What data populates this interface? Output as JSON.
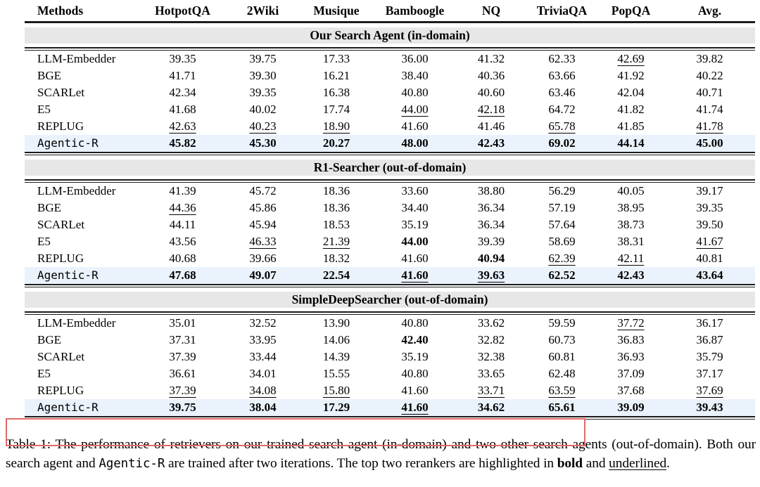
{
  "table": {
    "columns": [
      "Methods",
      "HotpotQA",
      "2Wiki",
      "Musique",
      "Bamboogle",
      "NQ",
      "TriviaQA",
      "PopQA",
      "Avg."
    ],
    "sections": [
      {
        "title": "Our Search Agent (in-domain)",
        "rows": [
          {
            "method": "LLM-Embedder",
            "mono": false,
            "highlight": false,
            "cells": [
              [
                "39.35",
                ""
              ],
              [
                "39.75",
                ""
              ],
              [
                "17.33",
                ""
              ],
              [
                "36.00",
                ""
              ],
              [
                "41.32",
                ""
              ],
              [
                "62.33",
                ""
              ],
              [
                "42.69",
                "u"
              ],
              [
                "39.82",
                ""
              ]
            ]
          },
          {
            "method": "BGE",
            "mono": false,
            "highlight": false,
            "cells": [
              [
                "41.71",
                ""
              ],
              [
                "39.30",
                ""
              ],
              [
                "16.21",
                ""
              ],
              [
                "38.40",
                ""
              ],
              [
                "40.36",
                ""
              ],
              [
                "63.66",
                ""
              ],
              [
                "41.92",
                ""
              ],
              [
                "40.22",
                ""
              ]
            ]
          },
          {
            "method": "SCARLet",
            "mono": false,
            "highlight": false,
            "cells": [
              [
                "42.34",
                ""
              ],
              [
                "39.35",
                ""
              ],
              [
                "16.38",
                ""
              ],
              [
                "40.80",
                ""
              ],
              [
                "40.60",
                ""
              ],
              [
                "63.46",
                ""
              ],
              [
                "42.04",
                ""
              ],
              [
                "40.71",
                ""
              ]
            ]
          },
          {
            "method": "E5",
            "mono": false,
            "highlight": false,
            "cells": [
              [
                "41.68",
                ""
              ],
              [
                "40.02",
                ""
              ],
              [
                "17.74",
                ""
              ],
              [
                "44.00",
                "u"
              ],
              [
                "42.18",
                "u"
              ],
              [
                "64.72",
                ""
              ],
              [
                "41.82",
                ""
              ],
              [
                "41.74",
                ""
              ]
            ]
          },
          {
            "method": "REPLUG",
            "mono": false,
            "highlight": false,
            "cells": [
              [
                "42.63",
                "u"
              ],
              [
                "40.23",
                "u"
              ],
              [
                "18.90",
                "u"
              ],
              [
                "41.60",
                ""
              ],
              [
                "41.46",
                ""
              ],
              [
                "65.78",
                "u"
              ],
              [
                "41.85",
                ""
              ],
              [
                "41.78",
                "u"
              ]
            ]
          },
          {
            "method": "Agentic-R",
            "mono": true,
            "highlight": true,
            "cells": [
              [
                "45.82",
                "b"
              ],
              [
                "45.30",
                "b"
              ],
              [
                "20.27",
                "b"
              ],
              [
                "48.00",
                "b"
              ],
              [
                "42.43",
                "b"
              ],
              [
                "69.02",
                "b"
              ],
              [
                "44.14",
                "b"
              ],
              [
                "45.00",
                "b"
              ]
            ]
          }
        ]
      },
      {
        "title": "R1-Searcher (out-of-domain)",
        "rows": [
          {
            "method": "LLM-Embedder",
            "mono": false,
            "highlight": false,
            "cells": [
              [
                "41.39",
                ""
              ],
              [
                "45.72",
                ""
              ],
              [
                "18.36",
                ""
              ],
              [
                "33.60",
                ""
              ],
              [
                "38.80",
                ""
              ],
              [
                "56.29",
                ""
              ],
              [
                "40.05",
                ""
              ],
              [
                "39.17",
                ""
              ]
            ]
          },
          {
            "method": "BGE",
            "mono": false,
            "highlight": false,
            "cells": [
              [
                "44.36",
                "u"
              ],
              [
                "45.86",
                ""
              ],
              [
                "18.36",
                ""
              ],
              [
                "34.40",
                ""
              ],
              [
                "36.34",
                ""
              ],
              [
                "57.19",
                ""
              ],
              [
                "38.95",
                ""
              ],
              [
                "39.35",
                ""
              ]
            ]
          },
          {
            "method": "SCARLet",
            "mono": false,
            "highlight": false,
            "cells": [
              [
                "44.11",
                ""
              ],
              [
                "45.94",
                ""
              ],
              [
                "18.53",
                ""
              ],
              [
                "35.19",
                ""
              ],
              [
                "36.34",
                ""
              ],
              [
                "57.64",
                ""
              ],
              [
                "38.73",
                ""
              ],
              [
                "39.50",
                ""
              ]
            ]
          },
          {
            "method": "E5",
            "mono": false,
            "highlight": false,
            "cells": [
              [
                "43.56",
                ""
              ],
              [
                "46.33",
                "u"
              ],
              [
                "21.39",
                "u"
              ],
              [
                "44.00",
                "b"
              ],
              [
                "39.39",
                ""
              ],
              [
                "58.69",
                ""
              ],
              [
                "38.31",
                ""
              ],
              [
                "41.67",
                "u"
              ]
            ]
          },
          {
            "method": "REPLUG",
            "mono": false,
            "highlight": false,
            "cells": [
              [
                "40.68",
                ""
              ],
              [
                "39.66",
                ""
              ],
              [
                "18.32",
                ""
              ],
              [
                "41.60",
                ""
              ],
              [
                "40.94",
                "b"
              ],
              [
                "62.39",
                "u"
              ],
              [
                "42.11",
                "u"
              ],
              [
                "40.81",
                ""
              ]
            ]
          },
          {
            "method": "Agentic-R",
            "mono": true,
            "highlight": true,
            "cells": [
              [
                "47.68",
                "b"
              ],
              [
                "49.07",
                "b"
              ],
              [
                "22.54",
                "b"
              ],
              [
                "41.60",
                "u"
              ],
              [
                "39.63",
                "u"
              ],
              [
                "62.52",
                "b"
              ],
              [
                "42.43",
                "b"
              ],
              [
                "43.64",
                "b"
              ]
            ]
          }
        ]
      },
      {
        "title": "SimpleDeepSearcher (out-of-domain)",
        "rows": [
          {
            "method": "LLM-Embedder",
            "mono": false,
            "highlight": false,
            "cells": [
              [
                "35.01",
                ""
              ],
              [
                "32.52",
                ""
              ],
              [
                "13.90",
                ""
              ],
              [
                "40.80",
                ""
              ],
              [
                "33.62",
                ""
              ],
              [
                "59.59",
                ""
              ],
              [
                "37.72",
                "u"
              ],
              [
                "36.17",
                ""
              ]
            ]
          },
          {
            "method": "BGE",
            "mono": false,
            "highlight": false,
            "cells": [
              [
                "37.31",
                ""
              ],
              [
                "33.95",
                ""
              ],
              [
                "14.06",
                ""
              ],
              [
                "42.40",
                "b"
              ],
              [
                "32.82",
                ""
              ],
              [
                "60.73",
                ""
              ],
              [
                "36.83",
                ""
              ],
              [
                "36.87",
                ""
              ]
            ]
          },
          {
            "method": "SCARLet",
            "mono": false,
            "highlight": false,
            "cells": [
              [
                "37.39",
                ""
              ],
              [
                "33.44",
                ""
              ],
              [
                "14.39",
                ""
              ],
              [
                "35.19",
                ""
              ],
              [
                "32.38",
                ""
              ],
              [
                "60.81",
                ""
              ],
              [
                "36.93",
                ""
              ],
              [
                "35.79",
                ""
              ]
            ]
          },
          {
            "method": "E5",
            "mono": false,
            "highlight": false,
            "cells": [
              [
                "36.61",
                ""
              ],
              [
                "34.01",
                ""
              ],
              [
                "15.55",
                ""
              ],
              [
                "40.80",
                ""
              ],
              [
                "33.65",
                ""
              ],
              [
                "62.48",
                ""
              ],
              [
                "37.09",
                ""
              ],
              [
                "37.17",
                ""
              ]
            ]
          },
          {
            "method": "REPLUG",
            "mono": false,
            "highlight": false,
            "cells": [
              [
                "37.39",
                "u"
              ],
              [
                "34.08",
                "u"
              ],
              [
                "15.80",
                "u"
              ],
              [
                "41.60",
                ""
              ],
              [
                "33.71",
                "u"
              ],
              [
                "63.59",
                "u"
              ],
              [
                "37.68",
                ""
              ],
              [
                "37.69",
                "u"
              ]
            ]
          },
          {
            "method": "Agentic-R",
            "mono": true,
            "highlight": true,
            "cells": [
              [
                "39.75",
                "b"
              ],
              [
                "38.04",
                "b"
              ],
              [
                "17.29",
                "b"
              ],
              [
                "41.60",
                "u"
              ],
              [
                "34.62",
                "b"
              ],
              [
                "65.61",
                "b"
              ],
              [
                "39.09",
                "b"
              ],
              [
                "39.43",
                "b"
              ]
            ]
          }
        ]
      }
    ]
  },
  "caption": {
    "segments": [
      [
        "Table 1: The performance of retrievers on our trained search agent (in-domain) and two other search agents (out-of-domain). Both our search agent and ",
        ""
      ],
      [
        "Agentic-R",
        "mono"
      ],
      [
        " are trained after two iterations. The top two rerankers are highlighted in ",
        ""
      ],
      [
        "bold",
        "b"
      ],
      [
        " and ",
        ""
      ],
      [
        "underlined",
        "u"
      ],
      [
        ".",
        ""
      ]
    ]
  },
  "colors": {
    "section_band": "#e7e7e7",
    "highlight_row": "#eaf2fb",
    "rule": "#1c1c1c",
    "annotation_box": "#e06a6a"
  }
}
